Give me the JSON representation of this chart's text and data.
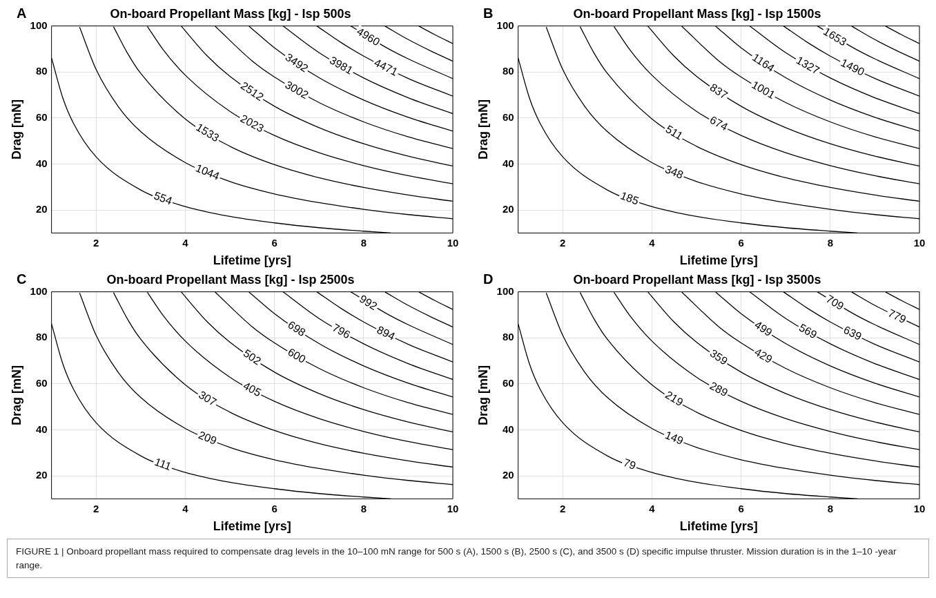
{
  "chart_data": [
    {
      "type": "line",
      "title": "On-board Propellant Mass [kg] - Isp 500s",
      "xlabel": "Lifetime [yrs]",
      "ylabel": "Drag [mN]",
      "annotations": [
        "A"
      ],
      "xlim": [
        1,
        10
      ],
      "xticks": [
        2,
        4,
        6,
        8,
        10
      ],
      "ylim": [
        10,
        100
      ],
      "yticks": [
        20,
        40,
        60,
        80,
        100
      ],
      "grid": true,
      "series": [
        {
          "name": "554",
          "color": "#000000",
          "x": [
            1,
            1.25,
            1.5,
            2,
            3,
            4,
            5,
            6,
            7,
            8,
            8.61
          ],
          "values": [
            86.1,
            68.9,
            57.4,
            43.1,
            28.7,
            21.5,
            17.2,
            14.4,
            12.3,
            10.8,
            10.0
          ]
        },
        {
          "name": "1044",
          "color": "#000000",
          "x": [
            1.63,
            2,
            2.5,
            3,
            4,
            5,
            6,
            7,
            8,
            9,
            10
          ],
          "values": [
            99.5,
            81.1,
            64.9,
            54.1,
            40.6,
            32.4,
            27.0,
            23.2,
            20.3,
            18.0,
            16.2
          ]
        },
        {
          "name": "1533",
          "color": "#000000",
          "x": [
            2.39,
            2.7,
            3,
            4,
            5,
            6,
            7,
            8,
            9,
            10
          ],
          "values": [
            99.7,
            88.3,
            79.4,
            59.6,
            47.7,
            39.7,
            34.0,
            29.8,
            26.5,
            23.8
          ]
        },
        {
          "name": "2023",
          "color": "#000000",
          "x": [
            3.15,
            3.5,
            4,
            5,
            6,
            7,
            8,
            9,
            10
          ],
          "values": [
            99.8,
            89.8,
            78.6,
            62.9,
            52.4,
            44.9,
            39.3,
            34.9,
            31.4
          ]
        },
        {
          "name": "2512",
          "color": "#000000",
          "x": [
            3.91,
            4.5,
            5,
            6,
            7,
            8,
            9,
            10
          ],
          "values": [
            99.9,
            86.8,
            78.1,
            65.1,
            55.8,
            48.8,
            43.4,
            39.1
          ]
        },
        {
          "name": "3002",
          "color": "#000000",
          "x": [
            4.67,
            5.5,
            6,
            7,
            8,
            9,
            10
          ],
          "values": [
            99.9,
            84.8,
            77.8,
            66.7,
            58.3,
            51.8,
            46.7
          ]
        },
        {
          "name": "3492",
          "color": "#000000",
          "x": [
            5.43,
            6,
            7,
            8,
            9,
            10
          ],
          "values": [
            99.9,
            90.5,
            77.5,
            67.8,
            60.3,
            54.3
          ]
        },
        {
          "name": "3981",
          "color": "#000000",
          "x": [
            6.19,
            7,
            8,
            9,
            10
          ],
          "values": [
            100.0,
            88.4,
            77.4,
            68.8,
            61.9
          ]
        },
        {
          "name": "4471",
          "color": "#000000",
          "x": [
            6.95,
            7.5,
            8,
            9,
            10
          ],
          "values": [
            100.0,
            92.7,
            86.9,
            77.2,
            69.5
          ]
        },
        {
          "name": "4960",
          "color": "#000000",
          "x": [
            7.71,
            8.5,
            9,
            10
          ],
          "values": [
            100.0,
            90.7,
            85.7,
            77.1
          ]
        },
        {
          "color": "#000000",
          "x": [
            8.48,
            9,
            9.5,
            10
          ],
          "values": [
            99.9,
            94.1,
            89.2,
            84.7
          ]
        },
        {
          "color": "#000000",
          "x": [
            9.24,
            9.6,
            10
          ],
          "values": [
            99.9,
            96.2,
            92.3
          ]
        }
      ]
    },
    {
      "type": "line",
      "title": "On-board Propellant Mass [kg] - Isp 1500s",
      "xlabel": "Lifetime [yrs]",
      "ylabel": "Drag [mN]",
      "annotations": [
        "B"
      ],
      "xlim": [
        1,
        10
      ],
      "xticks": [
        2,
        4,
        6,
        8,
        10
      ],
      "ylim": [
        10,
        100
      ],
      "yticks": [
        20,
        40,
        60,
        80,
        100
      ],
      "grid": true,
      "series": [
        {
          "name": "185",
          "color": "#000000",
          "x": [
            1,
            1.25,
            1.5,
            2,
            3,
            4,
            5,
            6,
            7,
            8,
            8.61
          ],
          "values": [
            86.1,
            68.9,
            57.4,
            43.1,
            28.7,
            21.5,
            17.2,
            14.4,
            12.3,
            10.8,
            10.0
          ]
        },
        {
          "name": "348",
          "color": "#000000",
          "x": [
            1.63,
            2,
            2.5,
            3,
            4,
            5,
            6,
            7,
            8,
            9,
            10
          ],
          "values": [
            99.5,
            81.1,
            64.9,
            54.1,
            40.6,
            32.4,
            27.0,
            23.2,
            20.3,
            18.0,
            16.2
          ]
        },
        {
          "name": "511",
          "color": "#000000",
          "x": [
            2.39,
            2.7,
            3,
            4,
            5,
            6,
            7,
            8,
            9,
            10
          ],
          "values": [
            99.7,
            88.3,
            79.4,
            59.6,
            47.7,
            39.7,
            34.0,
            29.8,
            26.5,
            23.8
          ]
        },
        {
          "name": "674",
          "color": "#000000",
          "x": [
            3.15,
            3.5,
            4,
            5,
            6,
            7,
            8,
            9,
            10
          ],
          "values": [
            99.8,
            89.8,
            78.6,
            62.9,
            52.4,
            44.9,
            39.3,
            34.9,
            31.4
          ]
        },
        {
          "name": "837",
          "color": "#000000",
          "x": [
            3.91,
            4.5,
            5,
            6,
            7,
            8,
            9,
            10
          ],
          "values": [
            99.9,
            86.8,
            78.1,
            65.1,
            55.8,
            48.8,
            43.4,
            39.1
          ]
        },
        {
          "name": "1001",
          "color": "#000000",
          "x": [
            4.67,
            5.5,
            6,
            7,
            8,
            9,
            10
          ],
          "values": [
            99.9,
            84.8,
            77.8,
            66.7,
            58.3,
            51.8,
            46.7
          ]
        },
        {
          "name": "1164",
          "color": "#000000",
          "x": [
            5.43,
            6,
            7,
            8,
            9,
            10
          ],
          "values": [
            99.9,
            90.5,
            77.5,
            67.8,
            60.3,
            54.3
          ]
        },
        {
          "name": "1327",
          "color": "#000000",
          "x": [
            6.19,
            7,
            8,
            9,
            10
          ],
          "values": [
            100.0,
            88.4,
            77.4,
            68.8,
            61.9
          ]
        },
        {
          "name": "1490",
          "color": "#000000",
          "x": [
            6.95,
            7.5,
            8,
            9,
            10
          ],
          "values": [
            100.0,
            92.7,
            86.9,
            77.2,
            69.5
          ]
        },
        {
          "name": "1653",
          "color": "#000000",
          "x": [
            7.71,
            8.5,
            9,
            10
          ],
          "values": [
            100.0,
            90.7,
            85.7,
            77.1
          ]
        },
        {
          "color": "#000000",
          "x": [
            8.48,
            9,
            9.5,
            10
          ],
          "values": [
            99.9,
            94.1,
            89.2,
            84.7
          ]
        },
        {
          "color": "#000000",
          "x": [
            9.24,
            9.6,
            10
          ],
          "values": [
            99.9,
            96.2,
            92.3
          ]
        }
      ]
    },
    {
      "type": "line",
      "title": "On-board Propellant Mass [kg] - Isp 2500s",
      "xlabel": "Lifetime [yrs]",
      "ylabel": "Drag [mN]",
      "annotations": [
        "C"
      ],
      "xlim": [
        1,
        10
      ],
      "xticks": [
        2,
        4,
        6,
        8,
        10
      ],
      "ylim": [
        10,
        100
      ],
      "yticks": [
        20,
        40,
        60,
        80,
        100
      ],
      "grid": true,
      "series": [
        {
          "name": "111",
          "color": "#000000",
          "x": [
            1,
            1.25,
            1.5,
            2,
            3,
            4,
            5,
            6,
            7,
            8,
            8.61
          ],
          "values": [
            86.1,
            68.9,
            57.4,
            43.1,
            28.7,
            21.5,
            17.2,
            14.4,
            12.3,
            10.8,
            10.0
          ]
        },
        {
          "name": "209",
          "color": "#000000",
          "x": [
            1.63,
            2,
            2.5,
            3,
            4,
            5,
            6,
            7,
            8,
            9,
            10
          ],
          "values": [
            99.5,
            81.1,
            64.9,
            54.1,
            40.6,
            32.4,
            27.0,
            23.2,
            20.3,
            18.0,
            16.2
          ]
        },
        {
          "name": "307",
          "color": "#000000",
          "x": [
            2.39,
            2.7,
            3,
            4,
            5,
            6,
            7,
            8,
            9,
            10
          ],
          "values": [
            99.7,
            88.3,
            79.4,
            59.6,
            47.7,
            39.7,
            34.0,
            29.8,
            26.5,
            23.8
          ]
        },
        {
          "name": "405",
          "color": "#000000",
          "x": [
            3.15,
            3.5,
            4,
            5,
            6,
            7,
            8,
            9,
            10
          ],
          "values": [
            99.8,
            89.8,
            78.6,
            62.9,
            52.4,
            44.9,
            39.3,
            34.9,
            31.4
          ]
        },
        {
          "name": "502",
          "color": "#000000",
          "x": [
            3.91,
            4.5,
            5,
            6,
            7,
            8,
            9,
            10
          ],
          "values": [
            99.9,
            86.8,
            78.1,
            65.1,
            55.8,
            48.8,
            43.4,
            39.1
          ]
        },
        {
          "name": "600",
          "color": "#000000",
          "x": [
            4.67,
            5.5,
            6,
            7,
            8,
            9,
            10
          ],
          "values": [
            99.9,
            84.8,
            77.8,
            66.7,
            58.3,
            51.8,
            46.7
          ]
        },
        {
          "name": "698",
          "color": "#000000",
          "x": [
            5.43,
            6,
            7,
            8,
            9,
            10
          ],
          "values": [
            99.9,
            90.5,
            77.5,
            67.8,
            60.3,
            54.3
          ]
        },
        {
          "name": "796",
          "color": "#000000",
          "x": [
            6.19,
            7,
            8,
            9,
            10
          ],
          "values": [
            100.0,
            88.4,
            77.4,
            68.8,
            61.9
          ]
        },
        {
          "name": "894",
          "color": "#000000",
          "x": [
            6.95,
            7.5,
            8,
            9,
            10
          ],
          "values": [
            100.0,
            92.7,
            86.9,
            77.2,
            69.5
          ]
        },
        {
          "name": "992",
          "color": "#000000",
          "x": [
            7.71,
            8.5,
            9,
            10
          ],
          "values": [
            100.0,
            90.7,
            85.7,
            77.1
          ]
        },
        {
          "color": "#000000",
          "x": [
            8.48,
            9,
            9.5,
            10
          ],
          "values": [
            99.9,
            94.1,
            89.2,
            84.7
          ]
        },
        {
          "color": "#000000",
          "x": [
            9.24,
            9.6,
            10
          ],
          "values": [
            99.9,
            96.2,
            92.3
          ]
        }
      ]
    },
    {
      "type": "line",
      "title": "On-board Propellant Mass [kg] - Isp 3500s",
      "xlabel": "Lifetime [yrs]",
      "ylabel": "Drag [mN]",
      "annotations": [
        "D",
        "FIGURE 1 | Onboard propellant mass required to compensate drag levels in the 10–100 mN range for 500 s (A), 1500 s (B), 2500 s (C), and 3500 s (D) specific impulse thruster. Mission duration is in the 1–10 -year range."
      ],
      "xlim": [
        1,
        10
      ],
      "xticks": [
        2,
        4,
        6,
        8,
        10
      ],
      "ylim": [
        10,
        100
      ],
      "yticks": [
        20,
        40,
        60,
        80,
        100
      ],
      "grid": true,
      "series": [
        {
          "name": "79",
          "color": "#000000",
          "x": [
            1,
            1.25,
            1.5,
            2,
            3,
            4,
            5,
            6,
            7,
            8,
            8.61
          ],
          "values": [
            86.1,
            68.9,
            57.4,
            43.1,
            28.7,
            21.5,
            17.2,
            14.4,
            12.3,
            10.8,
            10.0
          ]
        },
        {
          "name": "149",
          "color": "#000000",
          "x": [
            1.63,
            2,
            2.5,
            3,
            4,
            5,
            6,
            7,
            8,
            9,
            10
          ],
          "values": [
            99.5,
            81.1,
            64.9,
            54.1,
            40.6,
            32.4,
            27.0,
            23.2,
            20.3,
            18.0,
            16.2
          ]
        },
        {
          "name": "219",
          "color": "#000000",
          "x": [
            2.39,
            2.7,
            3,
            4,
            5,
            6,
            7,
            8,
            9,
            10
          ],
          "values": [
            99.7,
            88.3,
            79.4,
            59.6,
            47.7,
            39.7,
            34.0,
            29.8,
            26.5,
            23.8
          ]
        },
        {
          "name": "289",
          "color": "#000000",
          "x": [
            3.15,
            3.5,
            4,
            5,
            6,
            7,
            8,
            9,
            10
          ],
          "values": [
            99.8,
            89.8,
            78.6,
            62.9,
            52.4,
            44.9,
            39.3,
            34.9,
            31.4
          ]
        },
        {
          "name": "359",
          "color": "#000000",
          "x": [
            3.91,
            4.5,
            5,
            6,
            7,
            8,
            9,
            10
          ],
          "values": [
            99.9,
            86.8,
            78.1,
            65.1,
            55.8,
            48.8,
            43.4,
            39.1
          ]
        },
        {
          "name": "429",
          "color": "#000000",
          "x": [
            4.67,
            5.5,
            6,
            7,
            8,
            9,
            10
          ],
          "values": [
            99.9,
            84.8,
            77.8,
            66.7,
            58.3,
            51.8,
            46.7
          ]
        },
        {
          "name": "499",
          "color": "#000000",
          "x": [
            5.43,
            6,
            7,
            8,
            9,
            10
          ],
          "values": [
            99.9,
            90.5,
            77.5,
            67.8,
            60.3,
            54.3
          ]
        },
        {
          "name": "569",
          "color": "#000000",
          "x": [
            6.19,
            7,
            8,
            9,
            10
          ],
          "values": [
            100.0,
            88.4,
            77.4,
            68.8,
            61.9
          ]
        },
        {
          "name": "639",
          "color": "#000000",
          "x": [
            6.95,
            7.5,
            8,
            9,
            10
          ],
          "values": [
            100.0,
            92.7,
            86.9,
            77.2,
            69.5
          ]
        },
        {
          "name": "709",
          "color": "#000000",
          "x": [
            7.71,
            8.5,
            9,
            10
          ],
          "values": [
            100.0,
            90.7,
            85.7,
            77.1
          ]
        },
        {
          "name": "779",
          "color": "#000000",
          "x": [
            8.48,
            9,
            10
          ],
          "values": [
            99.9,
            94.1,
            84.7
          ]
        },
        {
          "color": "#000000",
          "x": [
            9.24,
            9.6,
            10
          ],
          "values": [
            99.9,
            96.2,
            92.3
          ]
        }
      ]
    }
  ]
}
